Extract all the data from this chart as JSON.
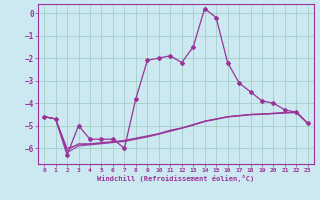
{
  "xlabel": "Windchill (Refroidissement éolien,°C)",
  "bg_color": "#cce8f0",
  "grid_color": "#99ccbb",
  "line_color": "#993399",
  "xlim": [
    -0.5,
    23.5
  ],
  "ylim": [
    -6.7,
    0.4
  ],
  "yticks": [
    0,
    -1,
    -2,
    -3,
    -4,
    -5,
    -6
  ],
  "xticks": [
    0,
    1,
    2,
    3,
    4,
    5,
    6,
    7,
    8,
    9,
    10,
    11,
    12,
    13,
    14,
    15,
    16,
    17,
    18,
    19,
    20,
    21,
    22,
    23
  ],
  "main_x": [
    0,
    1,
    2,
    3,
    4,
    5,
    6,
    7,
    8,
    9,
    10,
    11,
    12,
    13,
    14,
    15,
    16,
    17,
    18,
    19,
    20,
    21,
    22,
    23
  ],
  "main_y": [
    -4.6,
    -4.7,
    -6.3,
    -5.0,
    -5.6,
    -5.6,
    -5.6,
    -6.0,
    -3.8,
    -2.1,
    -2.0,
    -1.9,
    -2.2,
    -1.5,
    0.2,
    -0.2,
    -2.2,
    -3.1,
    -3.5,
    -3.9,
    -4.0,
    -4.3,
    -4.4,
    -4.9
  ],
  "line2_x": [
    0,
    1,
    2,
    3,
    4,
    5,
    6,
    7,
    8,
    9,
    10,
    11,
    12,
    13,
    14,
    15,
    16,
    17,
    18,
    19,
    20,
    21,
    22,
    23
  ],
  "line2_y": [
    -4.6,
    -4.7,
    -6.1,
    -5.8,
    -5.8,
    -5.75,
    -5.7,
    -5.65,
    -5.55,
    -5.45,
    -5.35,
    -5.2,
    -5.1,
    -4.95,
    -4.8,
    -4.7,
    -4.6,
    -4.55,
    -4.5,
    -4.48,
    -4.45,
    -4.42,
    -4.4,
    -4.9
  ],
  "line3_x": [
    0,
    1,
    2,
    3,
    4,
    5,
    6,
    7,
    8,
    9,
    10,
    11,
    12,
    13,
    14,
    15,
    16,
    17,
    18,
    19,
    20,
    21,
    22,
    23
  ],
  "line3_y": [
    -4.6,
    -4.7,
    -6.2,
    -5.9,
    -5.85,
    -5.8,
    -5.75,
    -5.7,
    -5.6,
    -5.5,
    -5.38,
    -5.25,
    -5.12,
    -4.98,
    -4.82,
    -4.72,
    -4.62,
    -4.57,
    -4.52,
    -4.5,
    -4.47,
    -4.44,
    -4.42,
    -4.9
  ],
  "line4_x": [
    0,
    1,
    2,
    3,
    4,
    5,
    6,
    7,
    8,
    9,
    10,
    11,
    12,
    13,
    14,
    15,
    16,
    17,
    18,
    19,
    20,
    21,
    22,
    23
  ],
  "line4_y": [
    -4.6,
    -4.7,
    -6.0,
    -5.85,
    -5.82,
    -5.78,
    -5.73,
    -5.68,
    -5.58,
    -5.48,
    -5.36,
    -5.22,
    -5.1,
    -4.96,
    -4.8,
    -4.7,
    -4.6,
    -4.55,
    -4.5,
    -4.48,
    -4.45,
    -4.42,
    -4.4,
    -4.9
  ]
}
